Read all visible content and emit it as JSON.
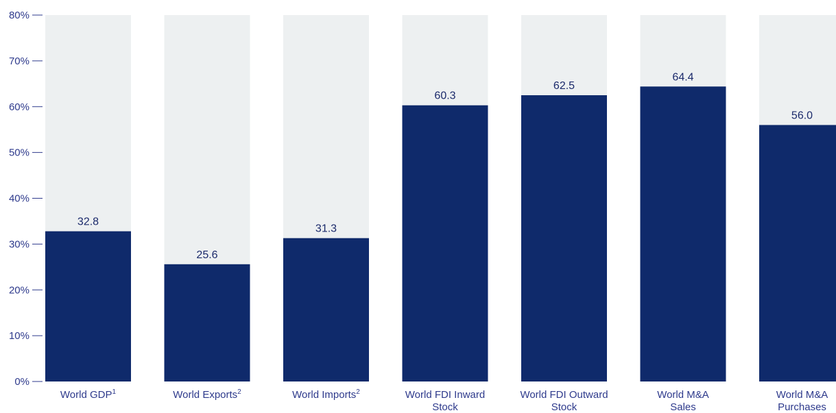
{
  "chart_data": {
    "type": "bar",
    "categories": [
      [
        "World GDP",
        "1"
      ],
      [
        "World Exports",
        "2"
      ],
      [
        "World Imports",
        "2"
      ],
      [
        "World FDI Inward",
        "Stock"
      ],
      [
        "World FDI Outward",
        "Stock"
      ],
      [
        "World M&A",
        "Sales"
      ],
      [
        "World M&A",
        "Purchases"
      ]
    ],
    "category_sup": [
      true,
      true,
      true,
      false,
      false,
      false,
      false
    ],
    "values": [
      32.8,
      25.6,
      31.3,
      60.3,
      62.5,
      64.4,
      56.0
    ],
    "value_labels": [
      "32.8",
      "25.6",
      "31.3",
      "60.3",
      "62.5",
      "64.4",
      "56.0"
    ],
    "yticks": [
      "0%",
      "10%",
      "20%",
      "30%",
      "40%",
      "50%",
      "60%",
      "70%",
      "80%"
    ],
    "ylim": [
      0,
      80
    ],
    "colors": {
      "bar": "#0f2a6b",
      "background_bar": "#edf0f1",
      "axis_text": "#2e3a8c"
    }
  }
}
